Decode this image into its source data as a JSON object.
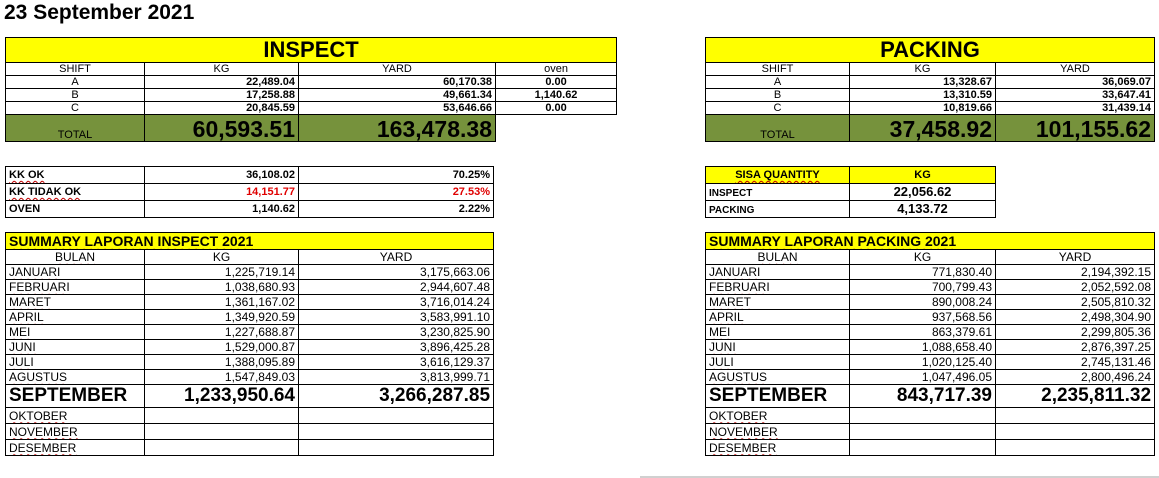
{
  "date_title": "23 September 2021",
  "inspect": {
    "header": "INSPECT",
    "columns": [
      "SHIFT",
      "KG",
      "YARD",
      "oven"
    ],
    "rows": [
      {
        "shift": "A",
        "kg": "22,489.04",
        "yard": "60,170.38",
        "oven": "0.00"
      },
      {
        "shift": "B",
        "kg": "17,258.88",
        "yard": "49,661.34",
        "oven": "1,140.62"
      },
      {
        "shift": "C",
        "kg": "20,845.59",
        "yard": "53,646.66",
        "oven": "0.00"
      }
    ],
    "total_label": "TOTAL",
    "total_kg": "60,593.51",
    "total_yard": "163,478.38"
  },
  "packing": {
    "header": "PACKING",
    "columns": [
      "SHIFT",
      "KG",
      "YARD"
    ],
    "rows": [
      {
        "shift": "A",
        "kg": "13,328.67",
        "yard": "36,069.07"
      },
      {
        "shift": "B",
        "kg": "13,310.59",
        "yard": "33,647.41"
      },
      {
        "shift": "C",
        "kg": "10,819.66",
        "yard": "31,439.14"
      }
    ],
    "total_label": "TOTAL",
    "total_kg": "37,458.92",
    "total_yard": "101,155.62"
  },
  "kk": [
    {
      "label": "KK OK",
      "kg": "36,108.02",
      "pct": "70.25%",
      "color": "#000000"
    },
    {
      "label": "KK TIDAK OK",
      "kg": "14,151.77",
      "pct": "27.53%",
      "color": "#e00000"
    },
    {
      "label": "OVEN",
      "kg": "1,140.62",
      "pct": "2.22%",
      "color": "#000000"
    }
  ],
  "sisa": {
    "header_label": "SISA QUANTITY",
    "header_kg": "KG",
    "rows": [
      {
        "label": "INSPECT",
        "kg": "22,056.62"
      },
      {
        "label": "PACKING",
        "kg": "4,133.72"
      }
    ]
  },
  "summary_inspect": {
    "title": "SUMMARY LAPORAN INSPECT 2021",
    "columns": [
      "BULAN",
      "KG",
      "YARD"
    ],
    "months": [
      {
        "name": "JANUARI",
        "kg": "1,225,719.14",
        "yard": "3,175,663.06"
      },
      {
        "name": "FEBRUARI",
        "kg": "1,038,680.93",
        "yard": "2,944,607.48"
      },
      {
        "name": "MARET",
        "kg": "1,361,167.02",
        "yard": "3,716,014.24"
      },
      {
        "name": "APRIL",
        "kg": "1,349,920.59",
        "yard": "3,583,991.10"
      },
      {
        "name": "MEI",
        "kg": "1,227,688.87",
        "yard": "3,230,825.90"
      },
      {
        "name": "JUNI",
        "kg": "1,529,000.87",
        "yard": "3,896,425.28"
      },
      {
        "name": "JULI",
        "kg": "1,388,095.89",
        "yard": "3,616,129.37"
      },
      {
        "name": "AGUSTUS",
        "kg": "1,547,849.03",
        "yard": "3,813,999.71"
      }
    ],
    "current": {
      "name": "SEPTEMBER",
      "kg": "1,233,950.64",
      "yard": "3,266,287.85"
    },
    "future": [
      "OKTOBER",
      "NOVEMBER",
      "DESEMBER"
    ]
  },
  "summary_packing": {
    "title": "SUMMARY LAPORAN PACKING 2021",
    "columns": [
      "BULAN",
      "KG",
      "YARD"
    ],
    "months": [
      {
        "name": "JANUARI",
        "kg": "771,830.40",
        "yard": "2,194,392.15"
      },
      {
        "name": "FEBRUARI",
        "kg": "700,799.43",
        "yard": "2,052,592.08"
      },
      {
        "name": "MARET",
        "kg": "890,008.24",
        "yard": "2,505,810.32"
      },
      {
        "name": "APRIL",
        "kg": "937,568.56",
        "yard": "2,498,304.90"
      },
      {
        "name": "MEI",
        "kg": "863,379.61",
        "yard": "2,299,805.36"
      },
      {
        "name": "JUNI",
        "kg": "1,088,658.40",
        "yard": "2,876,397.25"
      },
      {
        "name": "JULI",
        "kg": "1,020,125.40",
        "yard": "2,745,131.46"
      },
      {
        "name": "AGUSTUS",
        "kg": "1,047,496.05",
        "yard": "2,800,496.24"
      }
    ],
    "current": {
      "name": "SEPTEMBER",
      "kg": "843,717.39",
      "yard": "2,235,811.32"
    },
    "future": [
      "OKTOBER",
      "NOVEMBER",
      "DESEMBER"
    ]
  },
  "colors": {
    "header_yellow": "#ffff00",
    "total_green": "#76923c",
    "negative_red": "#e00000"
  }
}
